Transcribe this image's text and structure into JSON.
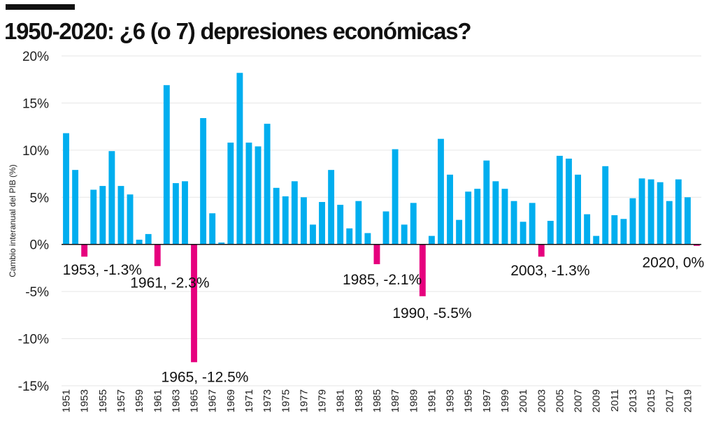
{
  "header": {
    "title": "1950-2020: ¿6 (o 7) depresiones económicas?"
  },
  "colors": {
    "positive": "#00aeef",
    "negative": "#e6007e",
    "grid": "#e6e6e6",
    "axis": "#111111",
    "text": "#222222"
  },
  "chart_data": {
    "type": "bar",
    "title": "1950-2020: ¿6 (o 7) depresiones económicas?",
    "xlabel": "",
    "ylabel": "Cambio interanual del PIB (%)",
    "ylim": [
      -15,
      20
    ],
    "yticks": [
      20,
      15,
      10,
      5,
      0,
      -5,
      -10,
      -15
    ],
    "ytick_labels": [
      "20%",
      "15%",
      "10%",
      "5%",
      "0%",
      "-5%",
      "-10%",
      "-15%"
    ],
    "categories": [
      "1951",
      "1952",
      "1953",
      "1954",
      "1955",
      "1956",
      "1957",
      "1958",
      "1959",
      "1960",
      "1961",
      "1962",
      "1963",
      "1964",
      "1965",
      "1966",
      "1967",
      "1968",
      "1969",
      "1970",
      "1971",
      "1972",
      "1973",
      "1974",
      "1975",
      "1976",
      "1977",
      "1978",
      "1979",
      "1980",
      "1981",
      "1982",
      "1983",
      "1984",
      "1985",
      "1986",
      "1987",
      "1988",
      "1989",
      "1990",
      "1991",
      "1992",
      "1993",
      "1994",
      "1995",
      "1996",
      "1997",
      "1998",
      "1999",
      "2000",
      "2001",
      "2002",
      "2003",
      "2004",
      "2005",
      "2006",
      "2007",
      "2008",
      "2009",
      "2010",
      "2011",
      "2012",
      "2013",
      "2014",
      "2015",
      "2016",
      "2017",
      "2018",
      "2019",
      "2020"
    ],
    "xtick_labels": [
      "1951",
      "1953",
      "1955",
      "1957",
      "1959",
      "1961",
      "1963",
      "1965",
      "1967",
      "1969",
      "1971",
      "1973",
      "1975",
      "1977",
      "1979",
      "1981",
      "1983",
      "1985",
      "1987",
      "1989",
      "1991",
      "1993",
      "1995",
      "1997",
      "1999",
      "2001",
      "2003",
      "2005",
      "2007",
      "2009",
      "2011",
      "2013",
      "2015",
      "2017",
      "2019"
    ],
    "values": [
      11.8,
      7.9,
      -1.3,
      5.8,
      6.2,
      9.9,
      6.2,
      5.3,
      0.5,
      1.1,
      -2.3,
      16.9,
      6.5,
      6.7,
      -12.5,
      13.4,
      3.3,
      0.2,
      10.8,
      18.2,
      10.8,
      10.4,
      12.8,
      6.0,
      5.1,
      6.7,
      5.0,
      2.1,
      4.5,
      7.9,
      4.2,
      1.7,
      4.6,
      1.2,
      -2.1,
      3.5,
      10.1,
      2.1,
      4.4,
      -5.5,
      0.9,
      11.2,
      7.4,
      2.6,
      5.6,
      5.9,
      8.9,
      6.7,
      5.9,
      4.6,
      2.4,
      4.4,
      -1.3,
      2.5,
      9.4,
      9.1,
      7.4,
      3.2,
      0.9,
      8.3,
      3.1,
      2.7,
      4.9,
      7.0,
      6.9,
      6.6,
      4.6,
      6.9,
      5.0,
      -0.15
    ],
    "annotations": [
      {
        "year": "1953",
        "label": "1953, -1.3%"
      },
      {
        "year": "1961",
        "label": "1961, -2.3%"
      },
      {
        "year": "1965",
        "label": "1965, -12.5%"
      },
      {
        "year": "1985",
        "label": "1985, -2.1%"
      },
      {
        "year": "1990",
        "label": "1990, -5.5%"
      },
      {
        "year": "2003",
        "label": "2003, -1.3%"
      },
      {
        "year": "2020",
        "label": "2020, 0%"
      }
    ]
  }
}
